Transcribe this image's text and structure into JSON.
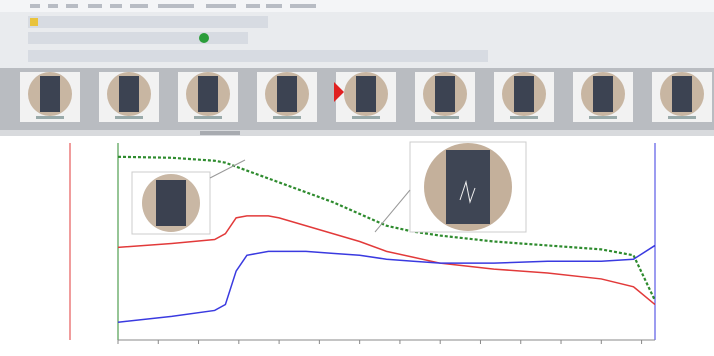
{
  "chart_data": {
    "type": "line",
    "x": [
      0,
      10,
      18,
      20,
      22,
      24,
      28,
      30,
      35,
      40,
      45,
      50,
      55,
      60,
      70,
      80,
      90,
      96,
      100
    ],
    "xlim": [
      0,
      100
    ],
    "ylim": [
      0,
      100
    ],
    "xticks": [
      0,
      7.5,
      15,
      22.5,
      30,
      37.5,
      45,
      52.5,
      60,
      67.5,
      75,
      82.5,
      90,
      97.5
    ],
    "series": [
      {
        "color": "#2e8b2e",
        "dashed": true,
        "values": [
          93,
          92.5,
          91,
          90,
          88,
          86,
          82,
          80,
          75,
          70,
          64,
          58,
          55,
          53,
          50,
          48,
          46,
          43,
          20
        ]
      },
      {
        "color": "#e23a3a",
        "values": [
          47,
          49,
          51,
          54,
          62,
          63,
          63,
          62,
          58,
          54,
          50,
          45,
          42,
          39,
          36,
          34,
          31,
          27,
          18
        ]
      },
      {
        "color": "#3a3ae0",
        "values": [
          9,
          12,
          15,
          18,
          35,
          43,
          45,
          45,
          45,
          44,
          43,
          41,
          40,
          39,
          39,
          40,
          40,
          41,
          48
        ]
      }
    ]
  }
}
